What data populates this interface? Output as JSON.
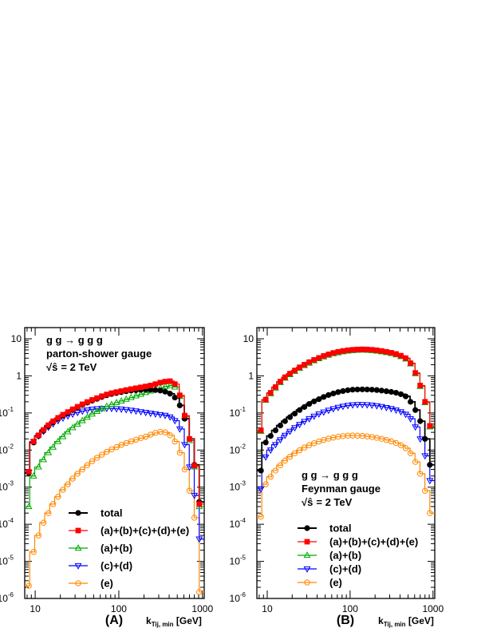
{
  "figure": {
    "x_axis_label": "k",
    "x_axis_sub": "Tij, min",
    "x_axis_unit": " [GeV]"
  },
  "chart_data": [
    {
      "type": "line",
      "panel_label": "(A)",
      "process": "g g → g g g",
      "gauge": "parton-shower gauge",
      "energy": "= 2 TeV",
      "energy_symbol": "√ŝ",
      "x_scale": "log",
      "y_scale": "log",
      "xlim": [
        7.5,
        1050
      ],
      "ylim": [
        1e-06,
        20
      ],
      "x_ticks": [
        {
          "v": 10,
          "label": "10"
        },
        {
          "v": 100,
          "label": "100"
        },
        {
          "v": 1000,
          "label": "1000"
        }
      ],
      "y_ticks": [
        {
          "v": 10,
          "label": "10",
          "exp": ""
        },
        {
          "v": 1,
          "label": "1",
          "exp": ""
        },
        {
          "v": 0.1,
          "label": "10",
          "exp": "-1"
        },
        {
          "v": 0.01,
          "label": "10",
          "exp": "-2"
        },
        {
          "v": 0.001,
          "label": "10",
          "exp": "-3"
        },
        {
          "v": 0.0001,
          "label": "10",
          "exp": "-4"
        },
        {
          "v": 1e-05,
          "label": "10",
          "exp": "-5"
        },
        {
          "v": 1e-06,
          "label": "10",
          "exp": "-6"
        }
      ],
      "legend_position": "bottom-center",
      "x": [
        8.4,
        9.6,
        11.0,
        12.6,
        14.4,
        16.4,
        18.8,
        21.5,
        24.6,
        28.1,
        32.1,
        36.7,
        42.0,
        48.0,
        54.9,
        62.7,
        71.7,
        82.0,
        93.8,
        107.2,
        122.6,
        140.2,
        160.3,
        183.3,
        209.6,
        239.6,
        274.0,
        313.3,
        358.2,
        409.6,
        468.3,
        535.5,
        612.3,
        700.1,
        800.5,
        915.4
      ],
      "series": [
        {
          "name": "total",
          "color": "#000000",
          "marker": "circle-filled",
          "values": [
            0.0024,
            0.016,
            0.024,
            0.033,
            0.044,
            0.056,
            0.07,
            0.085,
            0.1,
            0.12,
            0.14,
            0.165,
            0.19,
            0.215,
            0.24,
            0.27,
            0.3,
            0.325,
            0.345,
            0.365,
            0.385,
            0.4,
            0.41,
            0.42,
            0.43,
            0.425,
            0.415,
            0.4,
            0.375,
            0.33,
            0.26,
            0.16,
            0.07,
            0.02,
            0.004,
            0.0004
          ]
        },
        {
          "name": "(a)+(b)+(c)+(d)+(e)",
          "color": "#ff0000",
          "marker": "square-filled",
          "values": [
            0.0026,
            0.017,
            0.025,
            0.035,
            0.047,
            0.06,
            0.074,
            0.09,
            0.106,
            0.126,
            0.147,
            0.172,
            0.198,
            0.225,
            0.252,
            0.284,
            0.316,
            0.343,
            0.366,
            0.39,
            0.416,
            0.44,
            0.465,
            0.49,
            0.52,
            0.55,
            0.6,
            0.66,
            0.7,
            0.72,
            0.6,
            0.3,
            0.085,
            0.02,
            0.0038,
            0.00035
          ]
        },
        {
          "name": "(a)+(b)",
          "color": "#00aa00",
          "marker": "triangle-up-open",
          "values": [
            0.0003,
            0.002,
            0.0035,
            0.0055,
            0.0085,
            0.012,
            0.017,
            0.023,
            0.031,
            0.04,
            0.05,
            0.062,
            0.077,
            0.094,
            0.11,
            0.13,
            0.15,
            0.17,
            0.19,
            0.21,
            0.235,
            0.26,
            0.29,
            0.32,
            0.355,
            0.39,
            0.43,
            0.47,
            0.52,
            0.55,
            0.5,
            0.28,
            0.08,
            0.018,
            0.0035,
            0.0003
          ]
        },
        {
          "name": "(c)+(d)",
          "color": "#0000ff",
          "marker": "triangle-down-open",
          "values": [
            0.0025,
            0.017,
            0.024,
            0.032,
            0.041,
            0.051,
            0.062,
            0.073,
            0.083,
            0.093,
            0.103,
            0.112,
            0.12,
            0.126,
            0.13,
            0.132,
            0.133,
            0.132,
            0.13,
            0.127,
            0.123,
            0.118,
            0.113,
            0.108,
            0.103,
            0.098,
            0.094,
            0.09,
            0.086,
            0.078,
            0.062,
            0.037,
            0.014,
            0.0035,
            0.0006,
            4e-05
          ]
        },
        {
          "name": "(e)",
          "color": "#ff8800",
          "marker": "circle-open",
          "values": [
            2.2e-06,
            1.8e-05,
            5e-05,
            0.00011,
            0.0002,
            0.00035,
            0.00055,
            0.00085,
            0.0012,
            0.0017,
            0.0023,
            0.003,
            0.0039,
            0.005,
            0.0062,
            0.0075,
            0.009,
            0.0105,
            0.012,
            0.0138,
            0.0155,
            0.0172,
            0.019,
            0.021,
            0.023,
            0.026,
            0.029,
            0.031,
            0.03,
            0.025,
            0.017,
            0.0085,
            0.003,
            0.0008,
            0.00015,
            1.5e-06
          ]
        }
      ]
    },
    {
      "type": "line",
      "panel_label": "(B)",
      "process": "g g → g g g",
      "gauge": "Feynman gauge",
      "energy": "= 2 TeV",
      "energy_symbol": "√ŝ",
      "x_scale": "log",
      "y_scale": "log",
      "xlim": [
        7.5,
        1050
      ],
      "ylim": [
        1e-06,
        20
      ],
      "x_ticks": [
        {
          "v": 10,
          "label": "10"
        },
        {
          "v": 100,
          "label": "100"
        },
        {
          "v": 1000,
          "label": "1000"
        }
      ],
      "y_ticks": [
        {
          "v": 10,
          "label": "10",
          "exp": ""
        },
        {
          "v": 1,
          "label": "1",
          "exp": ""
        },
        {
          "v": 0.1,
          "label": "10",
          "exp": "-1"
        },
        {
          "v": 0.01,
          "label": "10",
          "exp": "-2"
        },
        {
          "v": 0.001,
          "label": "10",
          "exp": "-3"
        },
        {
          "v": 0.0001,
          "label": "10",
          "exp": "-4"
        },
        {
          "v": 1e-05,
          "label": "10",
          "exp": "-5"
        },
        {
          "v": 1e-06,
          "label": "10",
          "exp": "-6"
        }
      ],
      "legend_position": "bottom-center",
      "x": [
        8.4,
        9.6,
        11.0,
        12.6,
        14.4,
        16.4,
        18.8,
        21.5,
        24.6,
        28.1,
        32.1,
        36.7,
        42.0,
        48.0,
        54.9,
        62.7,
        71.7,
        82.0,
        93.8,
        107.2,
        122.6,
        140.2,
        160.3,
        183.3,
        209.6,
        239.6,
        274.0,
        313.3,
        358.2,
        409.6,
        468.3,
        535.5,
        612.3,
        700.1,
        800.5,
        915.4
      ],
      "series": [
        {
          "name": "total",
          "color": "#000000",
          "marker": "circle-filled",
          "values": [
            0.0028,
            0.016,
            0.024,
            0.034,
            0.046,
            0.06,
            0.077,
            0.096,
            0.12,
            0.145,
            0.175,
            0.205,
            0.235,
            0.27,
            0.305,
            0.335,
            0.365,
            0.39,
            0.41,
            0.425,
            0.43,
            0.432,
            0.43,
            0.425,
            0.415,
            0.4,
            0.385,
            0.37,
            0.35,
            0.32,
            0.28,
            0.2,
            0.12,
            0.06,
            0.02,
            0.004
          ]
        },
        {
          "name": "(a)+(b)+(c)+(d)+(e)",
          "color": "#ff0000",
          "marker": "square-filled",
          "values": [
            0.034,
            0.23,
            0.35,
            0.5,
            0.7,
            0.92,
            1.15,
            1.4,
            1.7,
            2.0,
            2.35,
            2.7,
            3.05,
            3.45,
            3.8,
            4.15,
            4.45,
            4.7,
            4.9,
            5.05,
            5.15,
            5.2,
            5.15,
            5.05,
            4.9,
            4.7,
            4.45,
            4.2,
            3.9,
            3.5,
            3.0,
            2.2,
            1.2,
            0.55,
            0.2,
            0.045
          ]
        },
        {
          "name": "(a)+(b)",
          "color": "#00aa00",
          "marker": "triangle-up-open",
          "values": [
            0.032,
            0.22,
            0.33,
            0.47,
            0.66,
            0.87,
            1.08,
            1.32,
            1.6,
            1.9,
            2.2,
            2.55,
            2.9,
            3.25,
            3.6,
            3.95,
            4.2,
            4.45,
            4.65,
            4.8,
            4.9,
            4.95,
            4.9,
            4.8,
            4.65,
            4.45,
            4.25,
            4.0,
            3.7,
            3.3,
            2.85,
            2.1,
            1.15,
            0.52,
            0.19,
            0.042
          ]
        },
        {
          "name": "(c)+(d)",
          "color": "#0000ff",
          "marker": "triangle-down-open",
          "values": [
            0.0009,
            0.0065,
            0.01,
            0.014,
            0.019,
            0.025,
            0.032,
            0.04,
            0.049,
            0.059,
            0.07,
            0.082,
            0.094,
            0.106,
            0.118,
            0.13,
            0.141,
            0.151,
            0.159,
            0.165,
            0.168,
            0.168,
            0.166,
            0.162,
            0.156,
            0.149,
            0.14,
            0.131,
            0.12,
            0.108,
            0.092,
            0.07,
            0.042,
            0.02,
            0.007,
            0.0015
          ]
        },
        {
          "name": "(e)",
          "color": "#ff8800",
          "marker": "circle-open",
          "values": [
            0.00016,
            0.0012,
            0.0019,
            0.0028,
            0.0039,
            0.0052,
            0.0066,
            0.0082,
            0.0099,
            0.0117,
            0.0135,
            0.0153,
            0.017,
            0.0187,
            0.0203,
            0.0217,
            0.0229,
            0.0238,
            0.0244,
            0.0246,
            0.0245,
            0.0241,
            0.0234,
            0.0225,
            0.0214,
            0.0201,
            0.0187,
            0.0172,
            0.0155,
            0.0135,
            0.0112,
            0.0082,
            0.0048,
            0.0023,
            0.0008,
            0.0002
          ]
        }
      ]
    }
  ]
}
